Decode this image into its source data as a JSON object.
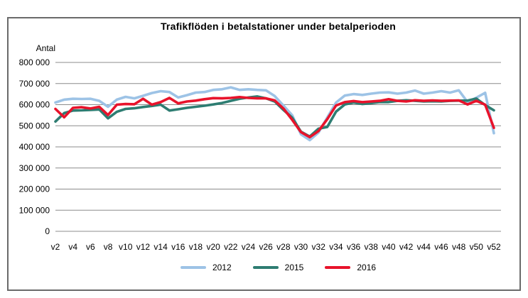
{
  "page": {
    "background": "#ffffff",
    "frame_border_color": "#6a6a6a",
    "gridline_color": "#8c8c8c"
  },
  "chart_data": {
    "type": "line",
    "title": "Trafikflöden i betalstationer under betalperioden",
    "ylabel": "Antal",
    "xlabel": "",
    "ylim": [
      0,
      800000
    ],
    "y_tick_step": 100000,
    "y_tick_labels": [
      "800 000",
      "700 000",
      "600 000",
      "500 000",
      "400 000",
      "300 000",
      "200 000",
      "100 000",
      "0"
    ],
    "x_tick_labels": [
      "v2",
      "v4",
      "v6",
      "v8",
      "v10",
      "v12",
      "v14",
      "v16",
      "v18",
      "v20",
      "v22",
      "v24",
      "v26",
      "v28",
      "v30",
      "v32",
      "v34",
      "v36",
      "v38",
      "v40",
      "v42",
      "v44",
      "v46",
      "v48",
      "v50",
      "v52"
    ],
    "weeks": [
      2,
      3,
      4,
      5,
      6,
      7,
      8,
      9,
      10,
      11,
      12,
      13,
      14,
      15,
      16,
      17,
      18,
      19,
      20,
      21,
      22,
      23,
      24,
      25,
      26,
      27,
      28,
      29,
      30,
      31,
      32,
      33,
      34,
      35,
      36,
      37,
      38,
      39,
      40,
      41,
      42,
      43,
      44,
      45,
      46,
      47,
      48,
      49,
      50,
      51,
      52
    ],
    "grid": "horizontal",
    "legend_position": "bottom",
    "series": [
      {
        "name": "2012",
        "color": "#9dc3e6",
        "values": [
          610000,
          624000,
          628000,
          627000,
          628000,
          618000,
          590000,
          624000,
          637000,
          630000,
          642000,
          655000,
          664000,
          660000,
          634000,
          645000,
          657000,
          660000,
          670000,
          673000,
          682000,
          670000,
          673000,
          670000,
          668000,
          641000,
          596000,
          550000,
          460000,
          432000,
          468000,
          539000,
          610000,
          643000,
          650000,
          646000,
          652000,
          657000,
          658000,
          652000,
          657000,
          667000,
          652000,
          657000,
          664000,
          657000,
          668000,
          612000,
          633000,
          656000,
          465000
        ]
      },
      {
        "name": "2015",
        "color": "#2e7d72",
        "values": [
          520000,
          560000,
          572000,
          573000,
          575000,
          577000,
          535000,
          566000,
          580000,
          583000,
          589000,
          594000,
          600000,
          572000,
          578000,
          585000,
          590000,
          595000,
          601000,
          608000,
          618000,
          628000,
          634000,
          639000,
          630000,
          615000,
          575000,
          538000,
          472000,
          449000,
          486000,
          494000,
          567000,
          601000,
          610000,
          603000,
          607000,
          612000,
          612000,
          618000,
          621000,
          618000,
          615000,
          616000,
          615000,
          618000,
          619000,
          619000,
          629000,
          598000,
          573000
        ]
      },
      {
        "name": "2016",
        "color": "#e8132b",
        "values": [
          580000,
          540000,
          585000,
          588000,
          582000,
          590000,
          551000,
          600000,
          603000,
          602000,
          628000,
          600000,
          612000,
          632000,
          606000,
          615000,
          619000,
          626000,
          631000,
          630000,
          632000,
          636000,
          632000,
          630000,
          630000,
          620000,
          582000,
          528000,
          470000,
          446000,
          475000,
          531000,
          596000,
          612000,
          617000,
          612000,
          615000,
          618000,
          626000,
          618000,
          615000,
          621000,
          618000,
          620000,
          618000,
          619000,
          620000,
          601000,
          618000,
          600000,
          490000
        ]
      }
    ]
  }
}
